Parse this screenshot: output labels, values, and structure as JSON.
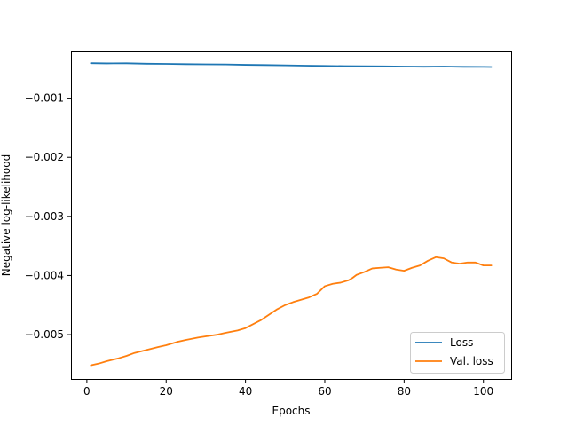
{
  "chart_data": {
    "type": "line",
    "title": "",
    "xlabel": "Epochs",
    "ylabel": "Negative log-likelihood",
    "xlim": [
      -4,
      107
    ],
    "ylim": [
      -0.00575,
      -0.00021
    ],
    "xticks": [
      0,
      20,
      40,
      60,
      80,
      100
    ],
    "yticks": [
      -0.005,
      -0.004,
      -0.003,
      -0.002,
      -0.001
    ],
    "xtick_labels": [
      "0",
      "20",
      "40",
      "60",
      "80",
      "100"
    ],
    "ytick_labels": [
      "−0.005",
      "−0.004",
      "−0.003",
      "−0.002",
      "−0.001"
    ],
    "grid": false,
    "legend": {
      "position": "lower-right"
    },
    "series": [
      {
        "name": "Loss",
        "color": "#1f77b4",
        "points": [
          [
            1,
            -0.000408
          ],
          [
            5,
            -0.000412
          ],
          [
            10,
            -0.00041
          ],
          [
            15,
            -0.000417
          ],
          [
            20,
            -0.00042
          ],
          [
            25,
            -0.000425
          ],
          [
            30,
            -0.000428
          ],
          [
            35,
            -0.00043
          ],
          [
            40,
            -0.000436
          ],
          [
            45,
            -0.00044
          ],
          [
            50,
            -0.000445
          ],
          [
            55,
            -0.00045
          ],
          [
            60,
            -0.000455
          ],
          [
            65,
            -0.000458
          ],
          [
            70,
            -0.00046
          ],
          [
            75,
            -0.000462
          ],
          [
            80,
            -0.000465
          ],
          [
            85,
            -0.000468
          ],
          [
            90,
            -0.000465
          ],
          [
            95,
            -0.00047
          ],
          [
            100,
            -0.000471
          ],
          [
            102,
            -0.000473
          ]
        ]
      },
      {
        "name": "Val. loss",
        "color": "#ff7f0e",
        "points": [
          [
            1,
            -0.00552
          ],
          [
            3,
            -0.00549
          ],
          [
            5,
            -0.00545
          ],
          [
            8,
            -0.0054
          ],
          [
            10,
            -0.00536
          ],
          [
            12,
            -0.00531
          ],
          [
            15,
            -0.00526
          ],
          [
            18,
            -0.00521
          ],
          [
            20,
            -0.00518
          ],
          [
            23,
            -0.00512
          ],
          [
            25,
            -0.00509
          ],
          [
            28,
            -0.00505
          ],
          [
            30,
            -0.00503
          ],
          [
            33,
            -0.005
          ],
          [
            35,
            -0.00497
          ],
          [
            38,
            -0.00493
          ],
          [
            40,
            -0.00489
          ],
          [
            42,
            -0.00482
          ],
          [
            44,
            -0.00475
          ],
          [
            46,
            -0.00466
          ],
          [
            48,
            -0.00457
          ],
          [
            50,
            -0.0045
          ],
          [
            52,
            -0.00445
          ],
          [
            54,
            -0.00441
          ],
          [
            56,
            -0.00437
          ],
          [
            58,
            -0.00431
          ],
          [
            60,
            -0.00418
          ],
          [
            62,
            -0.00414
          ],
          [
            64,
            -0.00412
          ],
          [
            66,
            -0.00408
          ],
          [
            67,
            -0.00404
          ],
          [
            68,
            -0.00399
          ],
          [
            70,
            -0.00394
          ],
          [
            72,
            -0.00388
          ],
          [
            74,
            -0.00387
          ],
          [
            76,
            -0.00386
          ],
          [
            78,
            -0.0039
          ],
          [
            80,
            -0.00392
          ],
          [
            82,
            -0.00387
          ],
          [
            84,
            -0.00383
          ],
          [
            86,
            -0.00375
          ],
          [
            88,
            -0.00369
          ],
          [
            90,
            -0.00371
          ],
          [
            92,
            -0.00378
          ],
          [
            94,
            -0.0038
          ],
          [
            96,
            -0.00378
          ],
          [
            98,
            -0.00378
          ],
          [
            100,
            -0.00383
          ],
          [
            102,
            -0.00383
          ]
        ]
      }
    ]
  }
}
